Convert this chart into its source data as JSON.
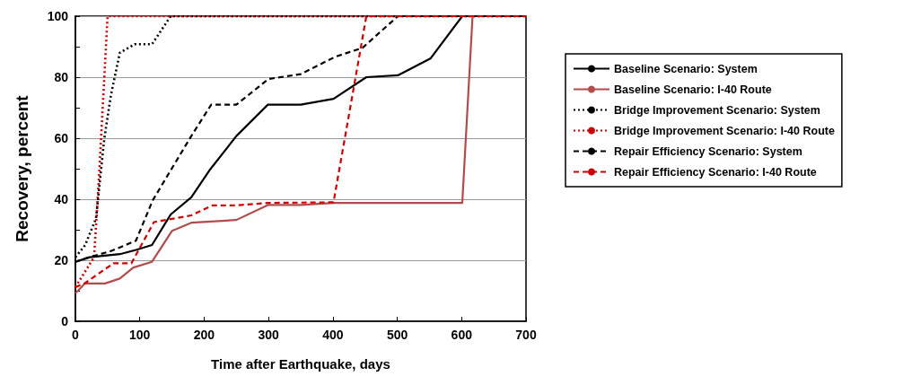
{
  "chart_data": {
    "type": "line",
    "xlabel": "Time after Earthquake, days",
    "ylabel": "Recovery, percent",
    "xlim": [
      0,
      700
    ],
    "xticks": [
      0,
      100,
      200,
      300,
      400,
      500,
      600,
      700
    ],
    "ylim": [
      0,
      100
    ],
    "yticks": [
      0,
      20,
      40,
      60,
      80,
      100
    ],
    "grid": "y",
    "legend": "right",
    "marker": "none",
    "series": [
      {
        "name": "Baseline Scenario: System",
        "color": "#000000",
        "line_style": "solid",
        "x": [
          0,
          22,
          69,
          94,
          119,
          148,
          180,
          208,
          250,
          299,
          350,
          401,
          452,
          501,
          552,
          601,
          700
        ],
        "values": [
          19.5,
          21,
          22,
          23.4,
          25,
          35,
          40.6,
          49.4,
          60.7,
          71,
          71,
          72.9,
          80,
          80.6,
          86.2,
          100,
          100
        ]
      },
      {
        "name": "Baseline Scenario: I-40 Route",
        "color": "#b24c4c",
        "line_style": "solid",
        "x": [
          0,
          15,
          46,
          69,
          90,
          119,
          150,
          180,
          250,
          299,
          350,
          401,
          601,
          617,
          700
        ],
        "values": [
          9.2,
          12.4,
          12.4,
          14,
          17.6,
          19.5,
          29.6,
          32.3,
          33.2,
          38.1,
          38.1,
          38.8,
          38.8,
          100,
          100
        ]
      },
      {
        "name": "Bridge Improvement Scenario: System",
        "color": "#000000",
        "line_style": "dotted",
        "x": [
          0,
          15,
          32,
          45,
          55,
          69,
          92,
          119,
          148,
          700
        ],
        "values": [
          21,
          24.9,
          33.7,
          60,
          73.9,
          88,
          90.8,
          90.8,
          100,
          100
        ]
      },
      {
        "name": "Bridge Improvement Scenario: I-40 Route",
        "color": "#cc0000",
        "line_style": "dotted",
        "x": [
          0,
          29,
          37,
          50,
          700
        ],
        "values": [
          11.2,
          21,
          48.5,
          100,
          100
        ]
      },
      {
        "name": "Repair Efficiency Scenario: System",
        "color": "#000000",
        "line_style": "dashed",
        "x": [
          0,
          22,
          55,
          94,
          120,
          180,
          211,
          250,
          300,
          350,
          404,
          446,
          501,
          700
        ],
        "values": [
          19.5,
          21,
          23,
          26.4,
          39.6,
          60.7,
          71,
          71,
          79.4,
          81,
          86.7,
          89.6,
          100,
          100
        ]
      },
      {
        "name": "Repair Efficiency Scenario: I-40 Route",
        "color": "#cc0000",
        "line_style": "dashed",
        "x": [
          0,
          15,
          59,
          87,
          122,
          180,
          213,
          250,
          299,
          401,
          452,
          700
        ],
        "values": [
          11.2,
          12.5,
          19,
          19,
          32.5,
          34.7,
          38,
          38,
          38.8,
          39,
          100,
          100
        ]
      }
    ]
  }
}
